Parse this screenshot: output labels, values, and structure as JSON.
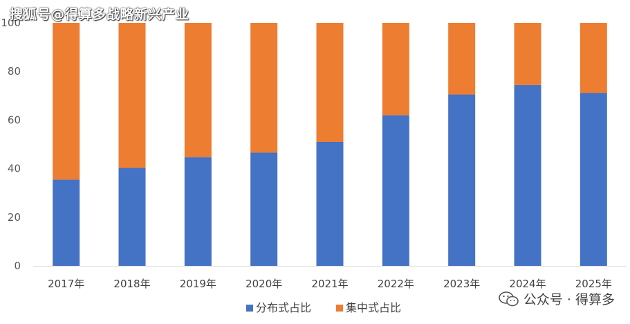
{
  "watermark_top": "搜狐号@得算多战略新兴产业",
  "watermark_bottom": "公众号 · 得算多",
  "icons": {
    "watermark_icon": "wechat-icon"
  },
  "chart_data": {
    "type": "bar",
    "stacked": true,
    "categories": [
      "2017年",
      "2018年",
      "2019年",
      "2020年",
      "2021年",
      "2022年",
      "2023年",
      "2024年",
      "2025年"
    ],
    "series": [
      {
        "name": "分布式占比",
        "color": "#4472C4",
        "values": [
          35.5,
          40.3,
          44.7,
          46.6,
          51.0,
          62.0,
          70.5,
          74.4,
          71.2
        ]
      },
      {
        "name": "集中式占比",
        "color": "#ED7D31",
        "values": [
          64.5,
          59.7,
          55.3,
          53.4,
          49.0,
          38.0,
          29.5,
          25.6,
          28.8
        ]
      }
    ],
    "yticks": [
      0,
      20,
      40,
      60,
      80,
      100
    ],
    "ylim": [
      0,
      100
    ],
    "grid": false,
    "legend": "bottom"
  }
}
